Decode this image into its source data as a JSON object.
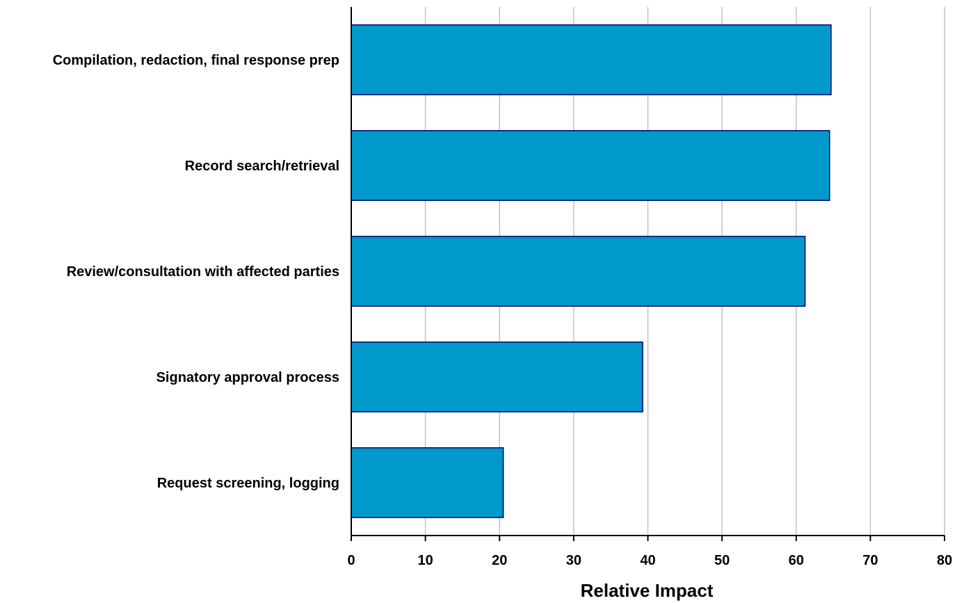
{
  "chart_data": {
    "type": "bar",
    "orientation": "horizontal",
    "categories": [
      "Compilation, redaction, final response prep",
      "Record search/retrieval",
      "Review/consultation with affected parties",
      "Signatory approval process",
      "Request screening, logging"
    ],
    "values": [
      64.7,
      64.5,
      61.2,
      39.3,
      20.5
    ],
    "title": "",
    "xlabel": "Relative Impact",
    "ylabel": "",
    "xlim": [
      0,
      80
    ],
    "xticks": [
      0,
      10,
      20,
      30,
      40,
      50,
      60,
      70,
      80
    ],
    "tick_labels": [
      "0",
      "10",
      "20",
      "30",
      "40",
      "50",
      "60",
      "70",
      "80"
    ],
    "grid": "vertical",
    "legend": "none",
    "colors": {
      "bar_fill": "#0099CC",
      "bar_stroke": "#000066",
      "gridline": "#C0C0C0",
      "axis": "#000000"
    }
  }
}
